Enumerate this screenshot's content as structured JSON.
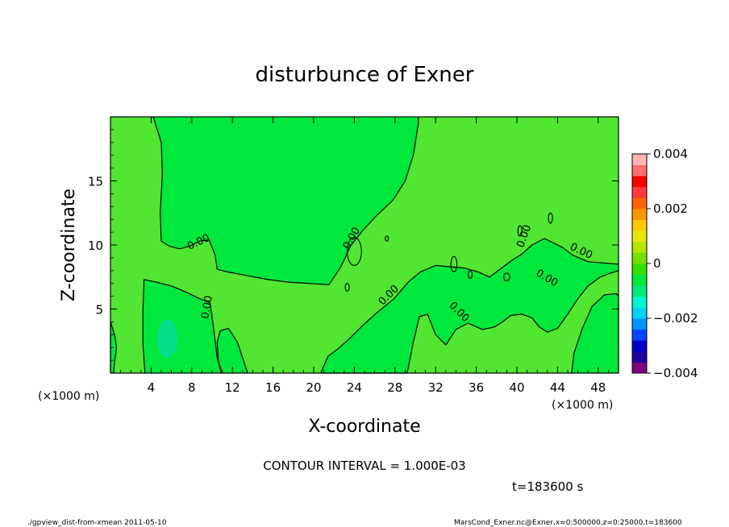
{
  "chart_data": {
    "type": "contour",
    "title": "disturbunce of Exner",
    "xlabel": "X-coordinate",
    "ylabel": "Z-coordinate",
    "x_unit": "(×1000 m)",
    "xlim": [
      0,
      50
    ],
    "ylim": [
      0,
      20
    ],
    "x_ticks": [
      4,
      8,
      12,
      16,
      20,
      24,
      28,
      32,
      36,
      40,
      44,
      48
    ],
    "y_ticks": [
      5,
      10,
      15
    ],
    "contour_interval_text": "CONTOUR INTERVAL = 1.000E-03",
    "contour_labels": [
      "0.00",
      "0.00",
      "0.00",
      "0.00",
      "0.00",
      "0.00",
      "0.00",
      "0.00"
    ],
    "time_text": "t=183600 s",
    "colorbar": {
      "min": -0.004,
      "max": 0.004,
      "tick_values": [
        -0.004,
        -0.002,
        0,
        0.002,
        0.004
      ],
      "tick_labels": [
        "−0.004",
        "−0.002",
        "0",
        "0.002",
        "0.004"
      ],
      "colors": [
        "#7f007f",
        "#1e00a0",
        "#0000cd",
        "#0046ff",
        "#0096ff",
        "#00d2ff",
        "#00f5d0",
        "#00e878",
        "#00e83c",
        "#32e000",
        "#78e000",
        "#b4e600",
        "#e6e600",
        "#ffc800",
        "#ff9600",
        "#ff6400",
        "#ff3c3c",
        "#ff0000",
        "#ff6f6f",
        "#ffb4b4"
      ]
    },
    "field_colors": {
      "background": "#50e632",
      "negative": "#00e83c",
      "strong_negative": "#00e08c"
    },
    "grid": false
  },
  "footer": {
    "left": "./gpview_dist-from-xmean  2011-05-10",
    "right": "MarsCond_Exner.nc@Exner,x=0:500000,z=0:25000,t=183600"
  }
}
